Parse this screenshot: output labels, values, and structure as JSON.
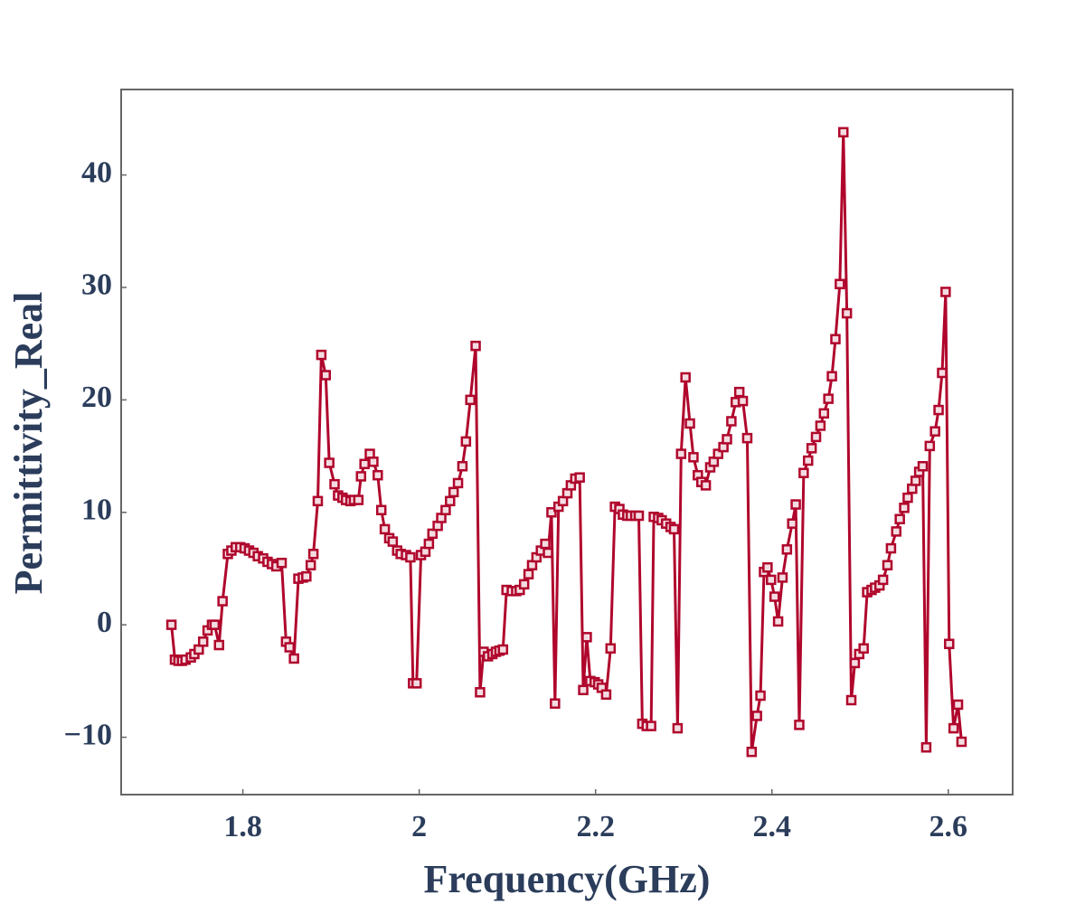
{
  "chart_data": {
    "type": "line",
    "x_label": "Frequency(GHz)",
    "y_label": "Permittivity_Real",
    "color": "#b0062c",
    "marker": "square",
    "x": [
      1.719,
      1.723,
      1.727,
      1.731,
      1.735,
      1.741,
      1.745,
      1.75,
      1.755,
      1.76,
      1.765,
      1.768,
      1.773,
      1.777,
      1.783,
      1.787,
      1.792,
      1.797,
      1.802,
      1.807,
      1.812,
      1.817,
      1.823,
      1.828,
      1.833,
      1.838,
      1.844,
      1.849,
      1.853,
      1.858,
      1.863,
      1.868,
      1.872,
      1.877,
      1.88,
      1.885,
      1.889,
      1.894,
      1.898,
      1.904,
      1.908,
      1.913,
      1.917,
      1.922,
      1.926,
      1.931,
      1.934,
      1.938,
      1.944,
      1.948,
      1.953,
      1.957,
      1.961,
      1.966,
      1.97,
      1.975,
      1.979,
      1.985,
      1.99,
      1.993,
      1.997,
      2.002,
      2.007,
      2.011,
      2.015,
      2.021,
      2.025,
      2.03,
      2.035,
      2.039,
      2.044,
      2.049,
      2.053,
      2.058,
      2.064,
      2.069,
      2.073,
      2.078,
      2.083,
      2.087,
      2.091,
      2.095,
      2.099,
      2.105,
      2.11,
      2.114,
      2.119,
      2.124,
      2.128,
      2.133,
      2.138,
      2.143,
      2.146,
      2.15,
      2.154,
      2.158,
      2.163,
      2.168,
      2.172,
      2.177,
      2.182,
      2.186,
      2.19,
      2.194,
      2.199,
      2.203,
      2.207,
      2.212,
      2.217,
      2.222,
      2.227,
      2.231,
      2.236,
      2.24,
      2.245,
      2.249,
      2.253,
      2.258,
      2.263,
      2.266,
      2.271,
      2.275,
      2.28,
      2.285,
      2.289,
      2.293,
      2.297,
      2.302,
      2.307,
      2.311,
      2.316,
      2.32,
      2.325,
      2.33,
      2.334,
      2.339,
      2.345,
      2.349,
      2.354,
      2.359,
      2.363,
      2.367,
      2.372,
      2.377,
      2.383,
      2.387,
      2.391,
      2.395,
      2.399,
      2.403,
      2.407,
      2.412,
      2.417,
      2.423,
      2.427,
      2.431,
      2.436,
      2.441,
      2.445,
      2.45,
      2.455,
      2.459,
      2.464,
      2.468,
      2.472,
      2.477,
      2.481,
      2.485,
      2.49,
      2.494,
      2.499,
      2.504,
      2.508,
      2.513,
      2.517,
      2.522,
      2.526,
      2.531,
      2.535,
      2.541,
      2.545,
      2.55,
      2.554,
      2.559,
      2.563,
      2.567,
      2.571,
      2.575,
      2.579,
      2.585,
      2.589,
      2.593,
      2.597,
      2.601,
      2.606,
      2.611,
      2.615
    ],
    "values": [
      0,
      -3.1,
      -3.2,
      -3.2,
      -3.1,
      -2.9,
      -2.6,
      -2.2,
      -1.5,
      -0.5,
      0,
      0,
      -1.8,
      2.1,
      6.3,
      6.6,
      6.9,
      6.9,
      6.8,
      6.6,
      6.4,
      6.1,
      5.9,
      5.6,
      5.4,
      5.2,
      5.5,
      -1.5,
      -2.0,
      -3.0,
      4.1,
      4.2,
      4.3,
      5.3,
      6.3,
      11.0,
      24.0,
      22.2,
      14.4,
      12.5,
      11.5,
      11.3,
      11.1,
      11.0,
      11.1,
      11.1,
      13.2,
      14.3,
      15.2,
      14.5,
      13.3,
      10.2,
      8.5,
      7.7,
      7.4,
      6.6,
      6.3,
      6.2,
      6.0,
      -5.2,
      -5.2,
      6.2,
      6.5,
      7.2,
      8.1,
      8.8,
      9.5,
      10.2,
      11.0,
      11.8,
      12.6,
      14.1,
      16.3,
      20.0,
      24.8,
      -6.0,
      -2.4,
      -2.8,
      -2.6,
      -2.4,
      -2.3,
      -2.2,
      3.1,
      3.0,
      3.0,
      3.1,
      3.6,
      4.5,
      5.3,
      6.0,
      6.6,
      7.2,
      6.4,
      10.0,
      -7.0,
      10.5,
      11.0,
      11.7,
      12.4,
      13.0,
      13.1,
      -5.8,
      -1.1,
      -5.0,
      -5.1,
      -5.3,
      -5.6,
      -6.2,
      -2.1,
      10.5,
      10.3,
      9.8,
      9.7,
      9.7,
      9.7,
      9.7,
      -8.8,
      -9.0,
      -9.0,
      9.6,
      9.5,
      9.3,
      9.0,
      8.7,
      8.5,
      -9.2,
      15.2,
      22.0,
      17.9,
      14.9,
      13.3,
      12.7,
      12.4,
      14.0,
      14.5,
      15.2,
      15.8,
      16.5,
      18.1,
      19.8,
      20.7,
      19.9,
      16.6,
      -11.3,
      -8.1,
      -6.3,
      4.7,
      5.1,
      4.0,
      2.5,
      0.3,
      4.2,
      6.7,
      9.0,
      10.7,
      -8.9,
      13.5,
      14.6,
      15.7,
      16.7,
      17.7,
      18.8,
      20.1,
      22.1,
      25.4,
      30.3,
      43.8,
      27.7,
      -6.7,
      -3.4,
      -2.6,
      -2.1,
      2.9,
      3.1,
      3.3,
      3.5,
      4.0,
      5.3,
      6.8,
      8.3,
      9.4,
      10.4,
      11.3,
      12.1,
      12.8,
      13.6,
      14.1,
      -10.9,
      15.9,
      17.2,
      19.1,
      22.4,
      29.6,
      -1.7,
      -9.2,
      -7.1,
      -10.4
    ],
    "xlim": [
      1.662,
      2.673
    ],
    "ylim": [
      -15.1,
      47.6
    ],
    "xticks": [
      1.8,
      2,
      2.2,
      2.4,
      2.6
    ],
    "yticks": [
      {
        "value": -10,
        "label": "−10"
      },
      0,
      10,
      20,
      30,
      40
    ]
  }
}
